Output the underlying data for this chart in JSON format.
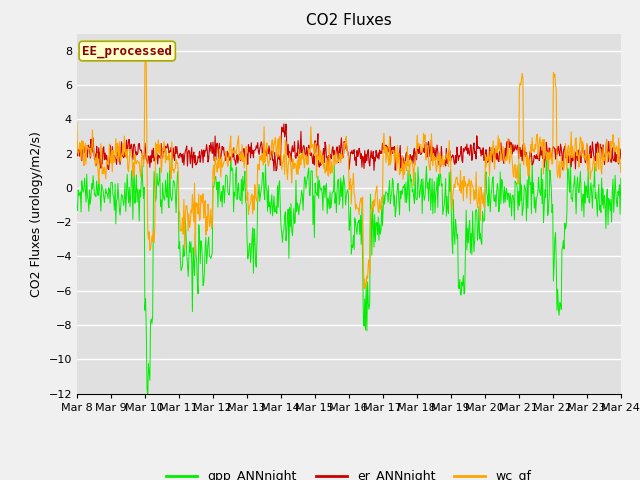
{
  "title": "CO2 Fluxes",
  "ylabel": "CO2 Fluxes (urology/m2/s)",
  "ylim": [
    -12,
    9
  ],
  "yticks": [
    -12,
    -10,
    -8,
    -6,
    -4,
    -2,
    0,
    2,
    4,
    6,
    8
  ],
  "bg_color": "#e0e0e0",
  "fig_color": "#f0f0f0",
  "green_color": "#00ee00",
  "red_color": "#cc0000",
  "orange_color": "#ffa500",
  "legend_label": "EE_processed",
  "legend_text_color": "#880000",
  "legend_box_color": "#ffffcc",
  "legend_box_edge": "#aaaa00",
  "line1_label": "gpp_ANNnight",
  "line2_label": "er_ANNnight",
  "line3_label": "wc_gf",
  "n_days": 16,
  "n_per_day": 48,
  "title_fontsize": 11,
  "axis_fontsize": 9,
  "tick_fontsize": 8
}
